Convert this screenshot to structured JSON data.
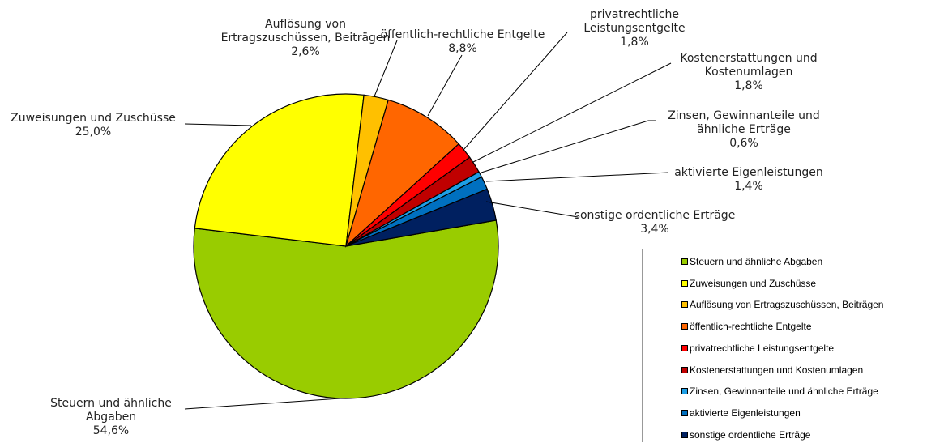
{
  "chart_data": {
    "type": "pie",
    "categories": [
      "Steuern und ähnliche Abgaben",
      "Zuweisungen und Zuschüsse",
      "Auflösung von Ertragszuschüssen, Beiträgen",
      "öffentlich-rechtliche Entgelte",
      "privatrechtliche Leistungsentgelte",
      "Kostenerstattungen und Kostenumlagen",
      "Zinsen, Gewinnanteile und ähnliche Erträge",
      "aktivierte Eigenleistungen",
      "sonstige ordentliche Erträge"
    ],
    "values": [
      54.6,
      25.0,
      2.6,
      8.8,
      1.8,
      1.8,
      0.6,
      1.4,
      3.4
    ],
    "value_labels": [
      "54,6%",
      "25,0%",
      "2,6%",
      "8,8%",
      "1,8%",
      "1,8%",
      "0,6%",
      "1,4%",
      "3,4%"
    ],
    "colors": [
      "#99cc00",
      "#ffff00",
      "#ffc000",
      "#ff6600",
      "#ff0000",
      "#c00000",
      "#1e9fe6",
      "#0070c0",
      "#002060"
    ],
    "legend": "lower right"
  }
}
